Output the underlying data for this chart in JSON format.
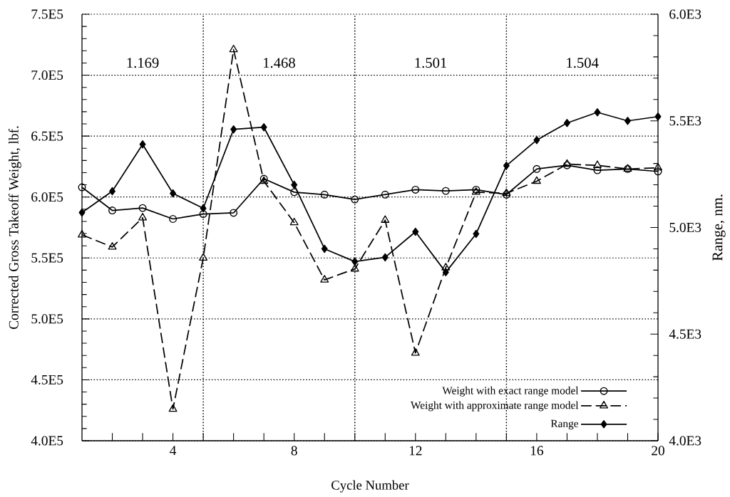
{
  "chart_data": {
    "type": "line",
    "xlabel": "Cycle Number",
    "ylabel": "Corrected Gross Takeoff Weight, lbf.",
    "y2label": "Range, nm.",
    "x": [
      1,
      2,
      3,
      4,
      5,
      6,
      7,
      8,
      9,
      10,
      11,
      12,
      13,
      14,
      15,
      16,
      17,
      18,
      19,
      20
    ],
    "xlim": [
      1,
      20
    ],
    "xticks": [
      {
        "value": 2,
        "label": null
      },
      {
        "value": 3,
        "label": null
      },
      4,
      {
        "value": 5,
        "label": null
      },
      {
        "value": 6,
        "label": null
      },
      {
        "value": 7,
        "label": null
      },
      8,
      {
        "value": 9,
        "label": null
      },
      {
        "value": 10,
        "label": null
      },
      {
        "value": 11,
        "label": null
      },
      12,
      {
        "value": 13,
        "label": null
      },
      {
        "value": 14,
        "label": null
      },
      {
        "value": 15,
        "label": null
      },
      16,
      {
        "value": 17,
        "label": null
      },
      {
        "value": 18,
        "label": null
      },
      {
        "value": 19,
        "label": null
      },
      20
    ],
    "ylim": [
      400000,
      750000
    ],
    "yticks": [
      {
        "value": 400000,
        "label": "4.0E5"
      },
      {
        "value": 450000,
        "label": "4.5E5"
      },
      {
        "value": 500000,
        "label": "5.0E5"
      },
      {
        "value": 550000,
        "label": "5.5E5"
      },
      {
        "value": 600000,
        "label": "6.0E5"
      },
      {
        "value": 650000,
        "label": "6.5E5"
      },
      {
        "value": 700000,
        "label": "7.0E5"
      },
      {
        "value": 750000,
        "label": "7.5E5"
      }
    ],
    "y2lim": [
      4000,
      6000
    ],
    "y2ticks": [
      {
        "value": 4000,
        "label": "4.0E3"
      },
      {
        "value": 4500,
        "label": "4.5E3"
      },
      {
        "value": 5000,
        "label": "5.0E3"
      },
      {
        "value": 5500,
        "label": "5.5E3"
      },
      {
        "value": 6000,
        "label": "6.0E3"
      }
    ],
    "series": [
      {
        "name": "Weight with exact range model",
        "color": "#000000",
        "marker": "circle",
        "line_style": "solid",
        "values": [
          608000,
          589000,
          591000,
          582000,
          586000,
          587000,
          615000,
          604000,
          602000,
          598000,
          602000,
          606000,
          605000,
          606000,
          602000,
          623000,
          626000,
          622000,
          623000,
          621000
        ]
      },
      {
        "name": "Weight with approximate range model",
        "color": "#000000",
        "marker": "triangle",
        "line_style": "dashed",
        "values": [
          569000,
          559000,
          583000,
          426000,
          550000,
          721000,
          613000,
          579000,
          532000,
          541000,
          581000,
          472000,
          542000,
          604000,
          603000,
          613000,
          627000,
          626000,
          623000,
          624000
        ]
      },
      {
        "name": "Range",
        "color": "#000000",
        "marker": "diamond",
        "line_style": "solid",
        "axis": "y2",
        "values": [
          5070,
          5170,
          5390,
          5160,
          5090,
          5460,
          5470,
          5200,
          4900,
          4840,
          4860,
          4980,
          4790,
          4970,
          5290,
          5410,
          5490,
          5540,
          5500,
          5520
        ]
      }
    ],
    "ref_lines": [
      {
        "axis": "x",
        "value": 5,
        "line_style": "dotted",
        "color": "#000000"
      },
      {
        "axis": "x",
        "value": 10,
        "line_style": "dotted",
        "color": "#000000"
      },
      {
        "axis": "x",
        "value": 15,
        "line_style": "dotted",
        "color": "#000000"
      }
    ],
    "annotations": [
      "1.169",
      "1.468",
      "1.501",
      "1.504"
    ],
    "grid": "y",
    "legend": "bottom right"
  }
}
